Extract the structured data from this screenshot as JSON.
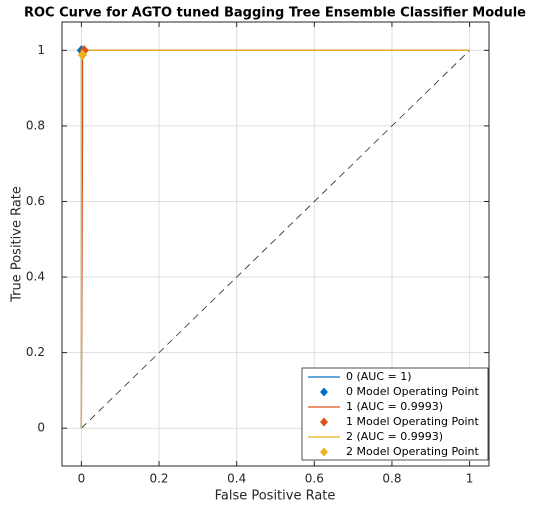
{
  "chart_data": {
    "type": "line",
    "title": "ROC Curve for AGTO tuned Bagging Tree Ensemble Classifier Module",
    "xlabel": "False Positive Rate",
    "ylabel": "True Positive Rate",
    "xlim": [
      -0.05,
      1.05
    ],
    "ylim": [
      -0.1,
      1.075
    ],
    "xticks": [
      0,
      0.2,
      0.4,
      0.6,
      0.8,
      1
    ],
    "yticks": [
      0,
      0.2,
      0.4,
      0.6,
      0.8,
      1
    ],
    "grid": true,
    "legend_position": "lower-right",
    "reference_line": {
      "x": [
        0,
        1
      ],
      "y": [
        0,
        1
      ],
      "style": "dashed",
      "color": "#262626"
    },
    "series": [
      {
        "name": "0 (AUC = 1)",
        "kind": "line",
        "color": "#0072bd",
        "x": [
          0,
          0,
          1
        ],
        "values": [
          0,
          1,
          1
        ]
      },
      {
        "name": "0 Model Operating Point",
        "kind": "marker",
        "color": "#0072bd",
        "x": [
          0
        ],
        "values": [
          1
        ]
      },
      {
        "name": "1 (AUC = 0.9993)",
        "kind": "line",
        "color": "#d95319",
        "x": [
          0,
          0.003,
          0.003,
          0.14,
          1
        ],
        "values": [
          0,
          0.8,
          1,
          1,
          1
        ]
      },
      {
        "name": "1 Model Operating Point",
        "kind": "marker",
        "color": "#d95319",
        "x": [
          0.007
        ],
        "values": [
          1
        ]
      },
      {
        "name": "2 (AUC = 0.9993)",
        "kind": "line",
        "color": "#edb120",
        "x": [
          0,
          0,
          0.01,
          1
        ],
        "values": [
          0,
          0.99,
          1,
          1
        ]
      },
      {
        "name": "2 Model Operating Point",
        "kind": "marker",
        "color": "#edb120",
        "x": [
          0.003
        ],
        "values": [
          0.988
        ]
      }
    ]
  }
}
